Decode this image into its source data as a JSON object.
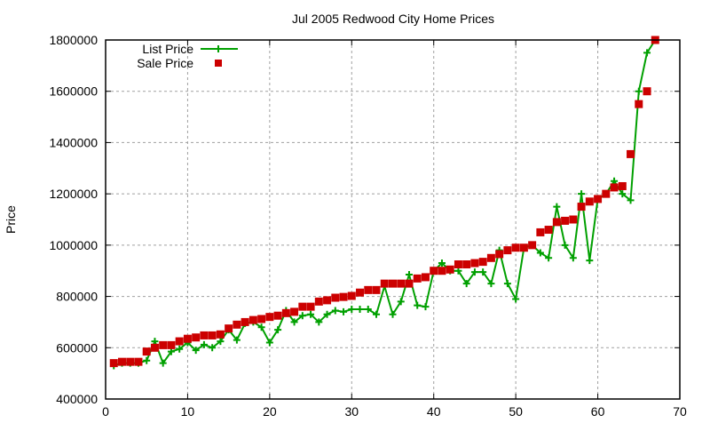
{
  "chart_data": {
    "type": "line",
    "title": "Jul 2005 Redwood City Home Prices",
    "xlabel": "",
    "ylabel": "Price",
    "xlim": [
      0,
      70
    ],
    "ylim": [
      400000,
      1800000
    ],
    "xticks": [
      0,
      10,
      20,
      30,
      40,
      50,
      60,
      70
    ],
    "yticks": [
      400000,
      600000,
      800000,
      1000000,
      1200000,
      1400000,
      1600000,
      1800000
    ],
    "grid": true,
    "legend_position": "top-left",
    "x": [
      1,
      2,
      3,
      4,
      5,
      6,
      7,
      8,
      9,
      10,
      11,
      12,
      13,
      14,
      15,
      16,
      17,
      18,
      19,
      20,
      21,
      22,
      23,
      24,
      25,
      26,
      27,
      28,
      29,
      30,
      31,
      32,
      33,
      34,
      35,
      36,
      37,
      38,
      39,
      40,
      41,
      42,
      43,
      44,
      45,
      46,
      47,
      48,
      49,
      50,
      51,
      52,
      53,
      54,
      55,
      56,
      57,
      58,
      59,
      60,
      61,
      62,
      63,
      64,
      65,
      66,
      67
    ],
    "series": [
      {
        "name": "List Price",
        "style": "linespoints",
        "color": "#00a000",
        "values": [
          530000,
          540000,
          540000,
          540000,
          550000,
          625000,
          540000,
          585000,
          595000,
          620000,
          590000,
          612000,
          600000,
          625000,
          670000,
          630000,
          695000,
          700000,
          680000,
          620000,
          670000,
          745000,
          700000,
          725000,
          730000,
          700000,
          730000,
          745000,
          740000,
          750000,
          750000,
          750000,
          730000,
          840000,
          730000,
          780000,
          885000,
          765000,
          760000,
          900000,
          930000,
          900000,
          900000,
          850000,
          895000,
          895000,
          850000,
          980000,
          850000,
          790000,
          990000,
          1000000,
          970000,
          950000,
          1150000,
          1000000,
          950000,
          1200000,
          940000,
          1180000,
          1200000,
          1250000,
          1200000,
          1175000,
          1600000,
          1750000,
          1800000
        ]
      },
      {
        "name": "Sale Price",
        "style": "points",
        "color": "#cc0000",
        "values": [
          540000,
          545000,
          545000,
          545000,
          585000,
          600000,
          610000,
          610000,
          625000,
          635000,
          640000,
          648000,
          648000,
          652000,
          675000,
          690000,
          700000,
          708000,
          712000,
          720000,
          725000,
          735000,
          740000,
          760000,
          760000,
          780000,
          785000,
          795000,
          798000,
          802000,
          815000,
          825000,
          825000,
          850000,
          850000,
          850000,
          850000,
          870000,
          875000,
          900000,
          900000,
          905000,
          925000,
          925000,
          930000,
          935000,
          950000,
          965000,
          980000,
          990000,
          990000,
          1000000,
          1050000,
          1060000,
          1090000,
          1095000,
          1100000,
          1150000,
          1170000,
          1180000,
          1200000,
          1225000,
          1230000,
          1355000,
          1550000,
          1600000,
          1800000
        ]
      }
    ]
  }
}
